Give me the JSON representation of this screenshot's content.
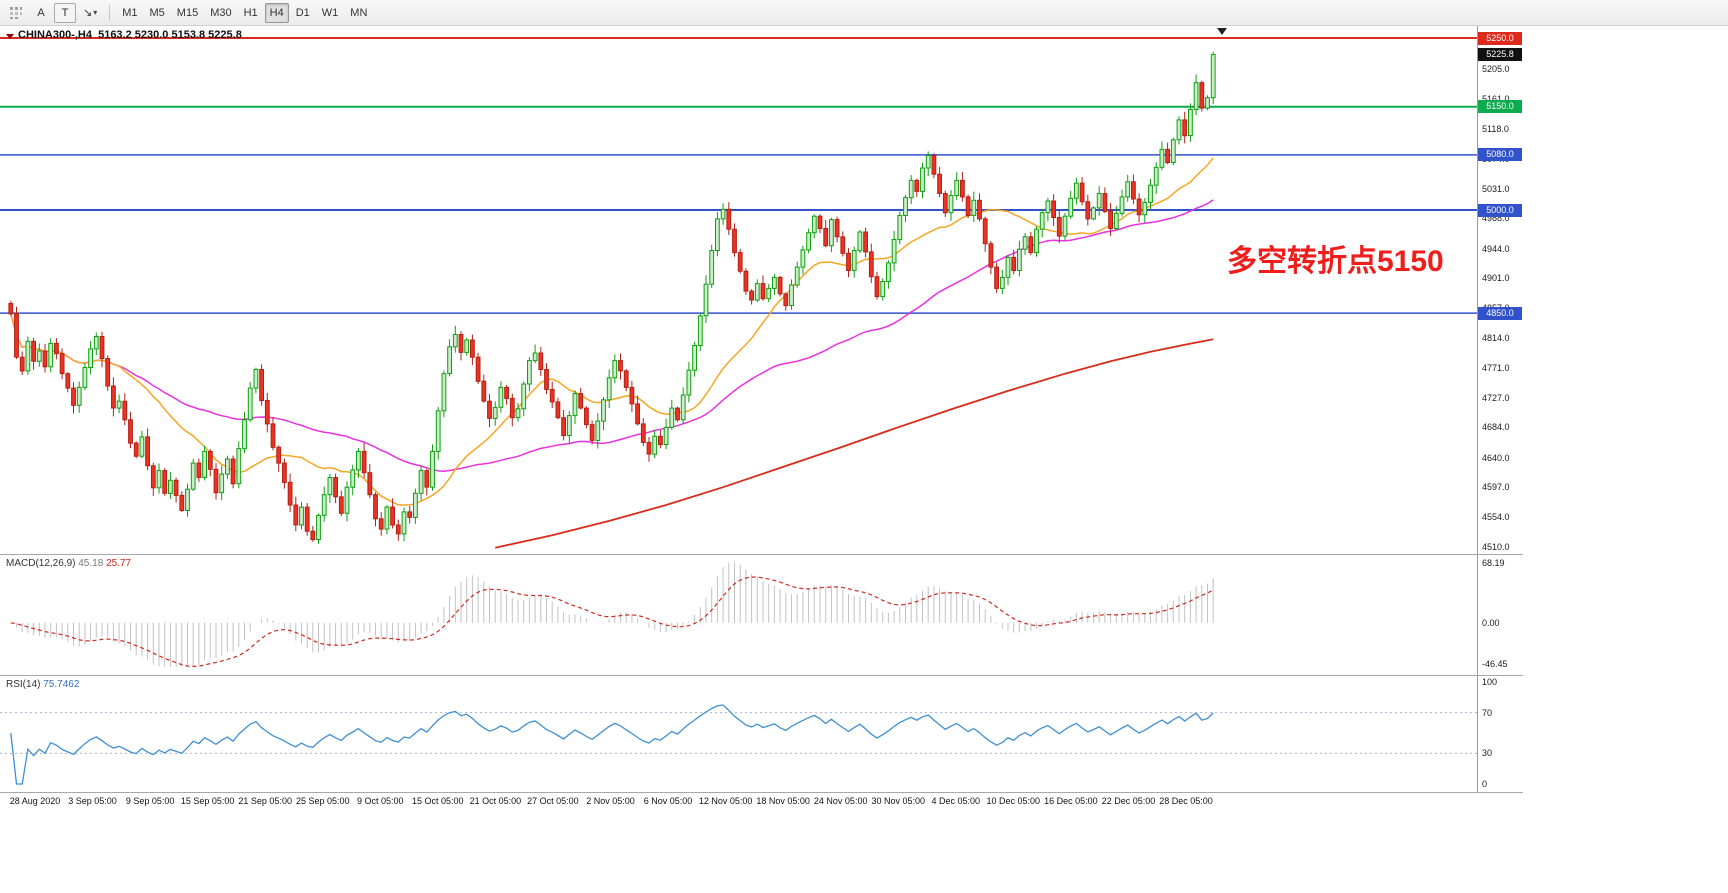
{
  "toolbar": {
    "text_tool": "A",
    "label_tool": "T",
    "arrow_tool": "↘",
    "timeframes": [
      "M1",
      "M5",
      "M15",
      "M30",
      "H1",
      "H4",
      "D1",
      "W1",
      "MN"
    ],
    "active_timeframe": "H4"
  },
  "chart": {
    "title": "CHINA300-,H4  5163.2 5230.0 5153.8 5225.8",
    "current_price": "5225.8",
    "current_price_color": "#111111",
    "annotation": {
      "text": "多空转折点5150",
      "color": "#f01d1d"
    },
    "levels": [
      {
        "price": 5250.0,
        "label": "5250.0",
        "color": "#dd2a1d",
        "width": 2
      },
      {
        "price": 5150.0,
        "label": "5150.0",
        "color": "#0cab4e",
        "width": 2
      },
      {
        "price": 5080.0,
        "label": "5080.0",
        "color": "#3252cc",
        "width": 1.5
      },
      {
        "price": 5000.0,
        "label": "5000.0",
        "color": "#3252cc",
        "width": 2
      },
      {
        "price": 4850.0,
        "label": "4850.0",
        "color": "#3252cc",
        "width": 1.5
      }
    ],
    "y_ticks": [
      "5205.0",
      "5161.0",
      "5118.0",
      "5074.0",
      "5031.0",
      "4988.0",
      "4944.0",
      "4901.0",
      "4857.0",
      "4814.0",
      "4771.0",
      "4727.0",
      "4684.0",
      "4640.0",
      "4597.0",
      "4554.0",
      "4510.0"
    ]
  },
  "chart_data": {
    "type": "candlestick",
    "symbol": "CHINA300-",
    "timeframe": "H4",
    "ohlc_current": {
      "open": 5163.2,
      "high": 5230.0,
      "low": 5153.8,
      "close": 5225.8
    },
    "ylim": [
      4510,
      5250
    ],
    "first_open": 4864,
    "closes": [
      4849,
      4786,
      4766,
      4809,
      4780,
      4795,
      4772,
      4806,
      4791,
      4762,
      4741,
      4716,
      4742,
      4771,
      4798,
      4816,
      4784,
      4744,
      4712,
      4722,
      4695,
      4661,
      4642,
      4670,
      4628,
      4596,
      4621,
      4588,
      4607,
      4585,
      4563,
      4594,
      4632,
      4611,
      4649,
      4623,
      4589,
      4616,
      4638,
      4602,
      4653,
      4695,
      4741,
      4768,
      4723,
      4689,
      4655,
      4632,
      4604,
      4571,
      4542,
      4568,
      4533,
      4521,
      4556,
      4586,
      4611,
      4583,
      4559,
      4597,
      4622,
      4649,
      4618,
      4586,
      4551,
      4536,
      4568,
      4542,
      4529,
      4561,
      4553,
      4588,
      4621,
      4597,
      4649,
      4708,
      4762,
      4801,
      4819,
      4793,
      4811,
      4786,
      4751,
      4722,
      4697,
      4713,
      4742,
      4726,
      4698,
      4711,
      4747,
      4781,
      4792,
      4768,
      4739,
      4721,
      4698,
      4672,
      4701,
      4733,
      4712,
      4688,
      4665,
      4693,
      4724,
      4756,
      4781,
      4766,
      4742,
      4718,
      4689,
      4662,
      4645,
      4671,
      4659,
      4684,
      4712,
      4695,
      4731,
      4767,
      4803,
      4846,
      4892,
      4941,
      4987,
      5001,
      4972,
      4938,
      4911,
      4882,
      4869,
      4893,
      4871,
      4886,
      4902,
      4878,
      4861,
      4891,
      4917,
      4942,
      4967,
      4991,
      4973,
      4948,
      4986,
      4961,
      4937,
      4912,
      4941,
      4968,
      4939,
      4903,
      4874,
      4896,
      4923,
      4957,
      4992,
      5018,
      5043,
      5027,
      5061,
      5079,
      5052,
      5024,
      4996,
      5021,
      5043,
      5019,
      4992,
      5014,
      4987,
      4951,
      4917,
      4886,
      4902,
      4931,
      4912,
      4943,
      4961,
      4938,
      4972,
      4996,
      5013,
      4989,
      4962,
      4991,
      5017,
      5039,
      5012,
      4987,
      5003,
      5024,
      4998,
      4973,
      4995,
      5019,
      5041,
      5016,
      4993,
      5011,
      5036,
      5062,
      5088,
      5069,
      5102,
      5131,
      5108,
      5146,
      5185,
      5148,
      5163.2,
      5225.8
    ],
    "last_candle": [
      5163.2,
      5230.0,
      5153.8,
      5225.8
    ],
    "up_color": "#c9eec9",
    "up_border": "#0f9f0f",
    "down_color": "#ea3323",
    "down_border": "#b32015",
    "ma_fast": {
      "period": 20,
      "color": "#f5a623"
    },
    "ma_slow": {
      "period": 60,
      "color": "#e832e0"
    },
    "ma_long": {
      "color": "#d92b1a",
      "points": [
        [
          85,
          4509
        ],
        [
          95,
          4527
        ],
        [
          105,
          4548
        ],
        [
          115,
          4571
        ],
        [
          125,
          4597
        ],
        [
          135,
          4625
        ],
        [
          145,
          4653
        ],
        [
          155,
          4682
        ],
        [
          165,
          4710
        ],
        [
          175,
          4737
        ],
        [
          185,
          4762
        ],
        [
          193,
          4780
        ],
        [
          200,
          4794
        ],
        [
          206,
          4804
        ],
        [
          211,
          4812
        ]
      ]
    }
  },
  "macd": {
    "label": "MACD(12,26,9)",
    "value_main": "45.18",
    "value_signal": "25.77",
    "axis_labels": [
      "68.19",
      "0.00",
      "-46.45"
    ],
    "histogram_color": "#c2c2c2",
    "signal_color": "#d22a1e"
  },
  "rsi": {
    "label": "RSI(14)",
    "value": "75.7462",
    "axis_labels": [
      "100",
      "70",
      "30",
      "0"
    ],
    "levels": [
      70,
      30
    ],
    "line_color": "#3f8fd2",
    "level_color": "#aab4cf"
  },
  "time_axis": [
    "28 Aug 2020",
    "3 Sep 05:00",
    "9 Sep 05:00",
    "15 Sep 05:00",
    "21 Sep 05:00",
    "25 Sep 05:00",
    "9 Oct 05:00",
    "15 Oct 05:00",
    "21 Oct 05:00",
    "27 Oct 05:00",
    "2 Nov 05:00",
    "6 Nov 05:00",
    "12 Nov 05:00",
    "18 Nov 05:00",
    "24 Nov 05:00",
    "30 Nov 05:00",
    "4 Dec 05:00",
    "10 Dec 05:00",
    "16 Dec 05:00",
    "22 Dec 05:00",
    "28 Dec 05:00"
  ]
}
